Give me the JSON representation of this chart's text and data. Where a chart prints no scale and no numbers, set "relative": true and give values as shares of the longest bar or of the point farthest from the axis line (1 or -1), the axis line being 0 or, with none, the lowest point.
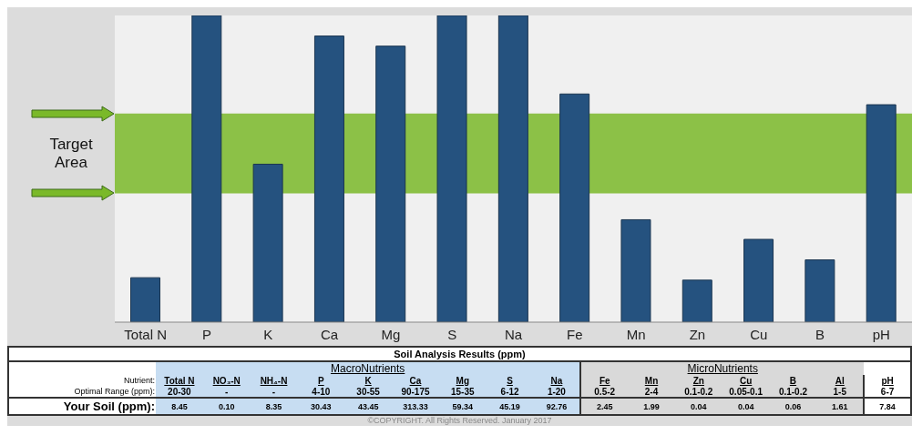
{
  "chart_data": {
    "type": "bar",
    "relative": true,
    "categories": [
      "Total N",
      "P",
      "K",
      "Ca",
      "Mg",
      "S",
      "Na",
      "Fe",
      "Mn",
      "Zn",
      "Cu",
      "B",
      "pH"
    ],
    "values": [
      0.145,
      1,
      0.515,
      0.933,
      0.9,
      1,
      1,
      0.744,
      0.334,
      0.137,
      0.27,
      0.203,
      0.709
    ],
    "color": "#25527f",
    "bands": [
      {
        "axis": "y",
        "from": 0.42,
        "to": 0.68,
        "label": "Target Area",
        "color": "#7ab929"
      }
    ],
    "annotations": [
      "Soil Analysis Results (ppm)",
      "MacroNutrients",
      "MicroNutrients",
      "Nutrient:",
      "Total N",
      "NO₃-N",
      "NH₄-N",
      "P",
      "K",
      "Ca",
      "Mg",
      "S",
      "Na",
      "Fe",
      "Mn",
      "Zn",
      "Cu",
      "B",
      "Al",
      "pH",
      "Optimal Range (ppm):",
      "20-30",
      "-",
      "-",
      "4-10",
      "30-55",
      "90-175",
      "15-35",
      "6-12",
      "1-20",
      "0.5-2",
      "2-4",
      "0.1-0.2",
      "0.05-0.1",
      "0.1-0.2",
      "1-5",
      "6-7",
      "Your Soil (ppm):",
      "8.45",
      "0.10",
      "8.35",
      "30.43",
      "43.45",
      "313.33",
      "59.34",
      "45.19",
      "92.76",
      "2.45",
      "1.99",
      "0.04",
      "0.04",
      "0.06",
      "1.61",
      "7.84",
      "©COPYRIGHT. All Rights Reserved. January 2017"
    ]
  }
}
